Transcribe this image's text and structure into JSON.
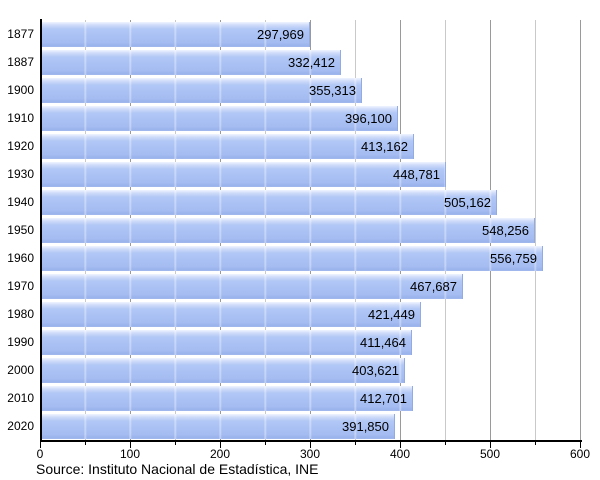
{
  "chart_data": {
    "type": "bar",
    "orientation": "horizontal",
    "title": "",
    "xlabel": "",
    "ylabel": "",
    "categories": [
      "1877",
      "1887",
      "1900",
      "1910",
      "1920",
      "1930",
      "1940",
      "1950",
      "1960",
      "1970",
      "1980",
      "1990",
      "2000",
      "2010",
      "2020"
    ],
    "values": [
      297969,
      332412,
      355313,
      396100,
      413162,
      448781,
      505162,
      548256,
      556759,
      467687,
      421449,
      411464,
      403621,
      412701,
      391850
    ],
    "value_labels": [
      "297,969",
      "332,412",
      "355,313",
      "396,100",
      "413,162",
      "448,781",
      "505,162",
      "548,256",
      "556,759",
      "467,687",
      "421,449",
      "411,464",
      "403,621",
      "412,701",
      "391,850"
    ],
    "x_axis": {
      "min": 0,
      "max": 600000,
      "units_shown_in_thousands": true,
      "major_tick_interval": 100000,
      "minor_tick_interval": 50000,
      "tick_labels": [
        "0",
        "100",
        "200",
        "300",
        "400",
        "500",
        "600"
      ]
    },
    "grid": true,
    "legend": false,
    "colors": {
      "bar_fill": "#aac1f4",
      "bar_highlight": "#eff4fe",
      "bar_edge": "#93abe2",
      "gridline_minor": "#c9c9c9",
      "gridline_major": "#9a9a9a",
      "axis": "#000000",
      "text": "#000000",
      "background": "#ffffff"
    },
    "source_note": "Source: Instituto Nacional de Estadística, INE"
  }
}
